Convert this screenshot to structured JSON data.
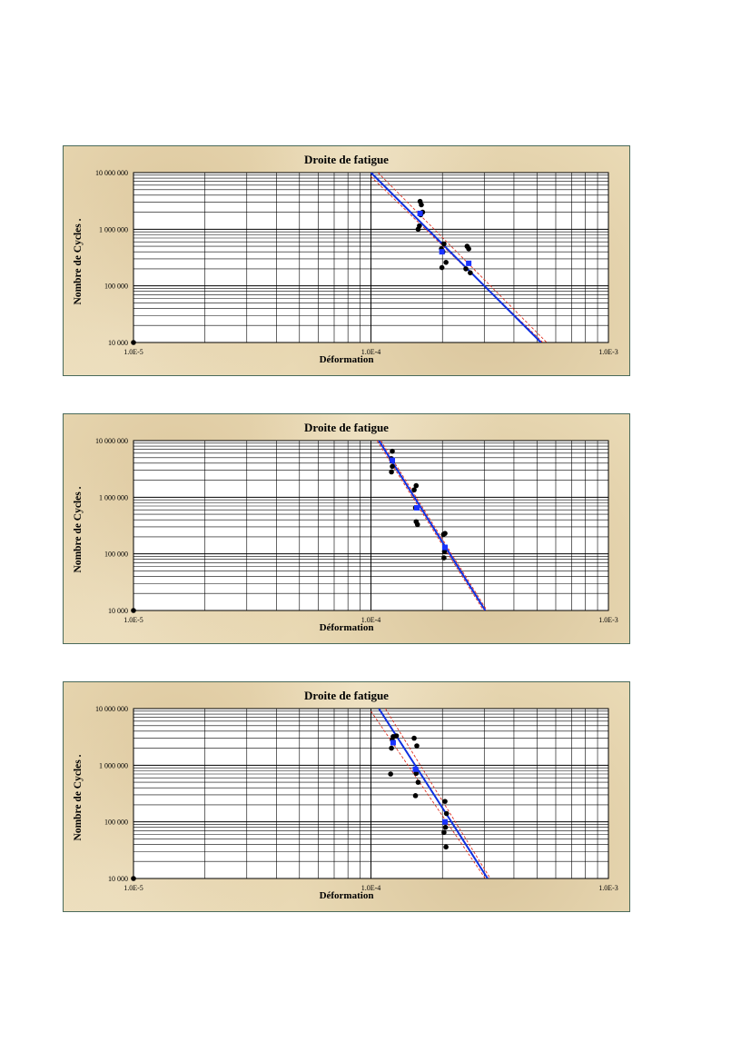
{
  "chart_data": [
    {
      "type": "scatter",
      "title": "Droite de fatigue",
      "xlabel": "Déformation",
      "ylabel": "Nombre de Cycles .",
      "x_scale": "log",
      "y_scale": "log",
      "xlim": [
        1e-05,
        0.001
      ],
      "ylim": [
        10000,
        10000000
      ],
      "x_tick_labels": [
        "1.0E-5",
        "1.0E-4",
        "1.0E-3"
      ],
      "y_tick_labels": [
        "10 000",
        "100 000",
        "1 000 000",
        "10 000 000"
      ],
      "grid": true,
      "series": [
        {
          "marker": "circle",
          "color": "#000000",
          "points": [
            [
              1e-05,
              10000
            ],
            [
              0.000161,
              3100000
            ],
            [
              0.000163,
              2700000
            ],
            [
              0.000162,
              1800000
            ],
            [
              0.000165,
              2000000
            ],
            [
              0.000158,
              1000000
            ],
            [
              0.00016,
              1150000
            ],
            [
              0.000198,
              450000
            ],
            [
              0.000203,
              550000
            ],
            [
              0.000201,
              400000
            ],
            [
              0.000207,
              260000
            ],
            [
              0.000199,
              210000
            ],
            [
              0.000254,
              500000
            ],
            [
              0.000258,
              450000
            ],
            [
              0.000251,
              200000
            ],
            [
              0.000262,
              170000
            ]
          ]
        },
        {
          "marker": "square",
          "color": "#1a33ff",
          "points": [
            [
              0.000161,
              1900000
            ],
            [
              0.000199,
              400000
            ],
            [
              0.000258,
              250000
            ]
          ]
        }
      ],
      "fit_line": {
        "color": "#1030e0",
        "points": [
          [
            0.0001,
            10000000
          ],
          [
            0.00052,
            10000
          ]
        ]
      },
      "confidence_band": {
        "color": "#e03020",
        "lower": [
          [
            0.0001,
            8500000
          ],
          [
            0.00053,
            10000
          ]
        ],
        "upper": [
          [
            0.000107,
            10000000
          ],
          [
            0.00055,
            10000
          ]
        ]
      }
    },
    {
      "type": "scatter",
      "title": "Droite de fatigue",
      "xlabel": "Déformation",
      "ylabel": "Nombre de Cycles .",
      "x_scale": "log",
      "y_scale": "log",
      "xlim": [
        1e-05,
        0.001
      ],
      "ylim": [
        10000,
        10000000
      ],
      "x_tick_labels": [
        "1.0E-5",
        "1.0E-4",
        "1.0E-3"
      ],
      "y_tick_labels": [
        "10 000",
        "100 000",
        "1 000 000",
        "10 000 000"
      ],
      "grid": true,
      "series": [
        {
          "marker": "circle",
          "color": "#000000",
          "points": [
            [
              1e-05,
              10000
            ],
            [
              0.000123,
              6500000
            ],
            [
              0.000122,
              4800000
            ],
            [
              0.000123,
              3500000
            ],
            [
              0.000122,
              2800000
            ],
            [
              0.000155,
              1600000
            ],
            [
              0.000152,
              1350000
            ],
            [
              0.000154,
              650000
            ],
            [
              0.000157,
              330000
            ],
            [
              0.000155,
              370000
            ],
            [
              0.000202,
              220000
            ],
            [
              0.000205,
              230000
            ],
            [
              0.000204,
              110000
            ],
            [
              0.000203,
              85000
            ]
          ]
        },
        {
          "marker": "square",
          "color": "#1a33ff",
          "points": [
            [
              0.000123,
              4500000
            ],
            [
              0.000156,
              650000
            ],
            [
              0.000205,
              130000
            ]
          ]
        }
      ],
      "fit_line": {
        "color": "#1030e0",
        "points": [
          [
            0.000108,
            10000000
          ],
          [
            0.000303,
            10000
          ]
        ]
      },
      "confidence_band": {
        "color": "#e03020",
        "lower": [
          [
            0.000106,
            10000000
          ],
          [
            0.000298,
            10000
          ]
        ],
        "upper": [
          [
            0.00011,
            10000000
          ],
          [
            0.000308,
            10000
          ]
        ]
      }
    },
    {
      "type": "scatter",
      "title": "Droite de fatigue",
      "xlabel": "Déformation",
      "ylabel": "Nombre de Cycles .",
      "x_scale": "log",
      "y_scale": "log",
      "xlim": [
        1e-05,
        0.001
      ],
      "ylim": [
        10000,
        10000000
      ],
      "x_tick_labels": [
        "1.0E-5",
        "1.0E-4",
        "1.0E-3"
      ],
      "y_tick_labels": [
        "10 000",
        "100 000",
        "1 000 000",
        "10 000 000"
      ],
      "grid": true,
      "series": [
        {
          "marker": "circle",
          "color": "#000000",
          "points": [
            [
              1e-05,
              10000
            ],
            [
              0.000124,
              3200000
            ],
            [
              0.000128,
              3300000
            ],
            [
              0.000123,
              2800000
            ],
            [
              0.000122,
              2000000
            ],
            [
              0.000152,
              3000000
            ],
            [
              0.000156,
              2200000
            ],
            [
              0.000121,
              700000
            ],
            [
              0.000155,
              720000
            ],
            [
              0.000158,
              500000
            ],
            [
              0.000154,
              290000
            ],
            [
              0.000205,
              230000
            ],
            [
              0.000208,
              140000
            ],
            [
              0.000206,
              80000
            ],
            [
              0.000203,
              65000
            ],
            [
              0.000207,
              36000
            ]
          ]
        },
        {
          "marker": "square",
          "color": "#1a33ff",
          "points": [
            [
              0.000124,
              2500000
            ],
            [
              0.000154,
              850000
            ],
            [
              0.000205,
              100000
            ]
          ]
        }
      ],
      "fit_line": {
        "color": "#1030e0",
        "points": [
          [
            0.000108,
            10000000
          ],
          [
            0.00031,
            10000
          ]
        ]
      },
      "confidence_band": {
        "color": "#e03020",
        "lower": [
          [
            0.0001,
            9000000
          ],
          [
            0.000303,
            10000
          ]
        ],
        "upper": [
          [
            0.000115,
            10000000
          ],
          [
            0.000318,
            10000
          ]
        ]
      }
    }
  ]
}
